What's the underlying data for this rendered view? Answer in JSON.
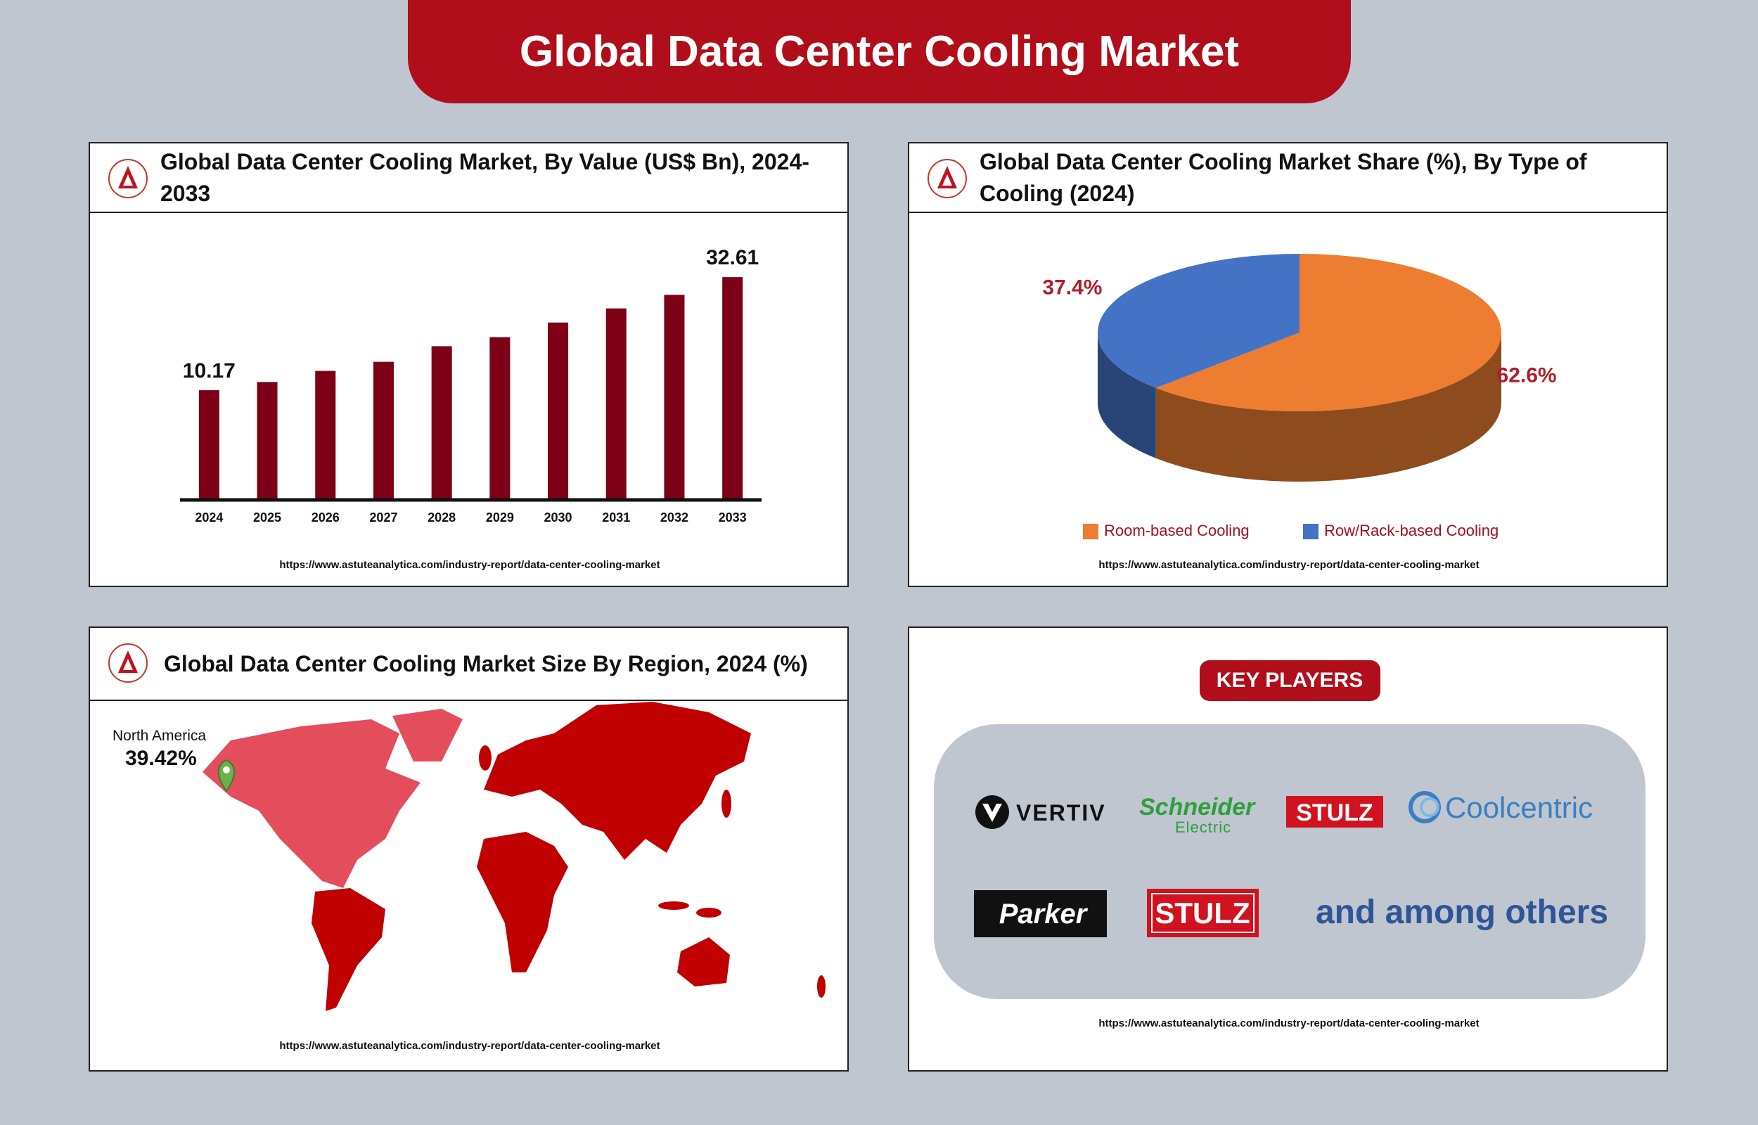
{
  "header": {
    "title": "Global Data Center Cooling Market"
  },
  "chart_data": [
    {
      "type": "bar",
      "title": "Global Data Center Cooling Market, By Value (US$ Bn), 2024-2033",
      "categories": [
        "2024",
        "2025",
        "2026",
        "2027",
        "2028",
        "2029",
        "2030",
        "2031",
        "2032",
        "2033"
      ],
      "values": [
        10.17,
        11.8,
        14.0,
        15.8,
        18.9,
        20.7,
        23.6,
        26.4,
        29.1,
        32.61
      ],
      "value_labels": [
        "10.17",
        null,
        null,
        null,
        null,
        null,
        null,
        null,
        null,
        "32.61"
      ],
      "color": "#7d0016",
      "ylim": [
        -11.6,
        35
      ],
      "source": "https://www.astuteanalytica.com/industry-report/data-center-cooling-market"
    },
    {
      "type": "pie",
      "title": "Global Data Center Cooling Market Share (%), By Type of Cooling (2024)",
      "categories": [
        "Room-based Cooling",
        "Row/Rack-based Cooling"
      ],
      "values": [
        62.6,
        37.4
      ],
      "value_labels": [
        "62.6%",
        "37.4%"
      ],
      "colors": [
        "#ed7d31",
        "#4472c4"
      ],
      "legend": "bottom",
      "source": "https://www.astuteanalytica.com/industry-report/data-center-cooling-market"
    }
  ],
  "map": {
    "title": "Global Data Center Cooling Market Size By Region, 2024 (%)",
    "region": "North America",
    "share": "39.42%",
    "source": "https://www.astuteanalytica.com/industry-report/data-center-cooling-market"
  },
  "key_players": {
    "title": "KEY PLAYERS",
    "companies": [
      {
        "name": "VERTIV"
      },
      {
        "name": "Schneider",
        "subtitle": "Electric"
      },
      {
        "name": "STULZ"
      },
      {
        "name": "Coolcentric"
      },
      {
        "name": "Parker"
      },
      {
        "name": "STULZ"
      }
    ],
    "note": "and among others",
    "source": "https://www.astuteanalytica.com/industry-report/data-center-cooling-market"
  }
}
